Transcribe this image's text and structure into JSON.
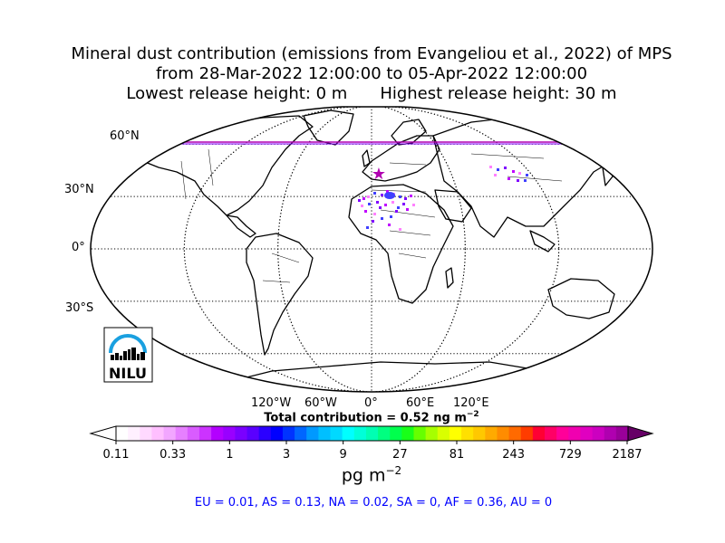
{
  "title": {
    "line1": "Mineral dust contribution (emissions from Evangeliou et al., 2022) of MPS",
    "line2": "from 28-Mar-2022 12:00:00 to 05-Apr-2022 12:00:00",
    "line3_left": "Lowest release height: 0 m",
    "line3_right": "Highest release height: 30 m"
  },
  "map": {
    "projection": "robinson",
    "lat_labels": [
      "60°N",
      "30°N",
      "0°",
      "30°S"
    ],
    "lon_labels": [
      "120°W",
      "60°W",
      "0°",
      "60°E",
      "120°E"
    ],
    "release_marker_color": "#b000b0",
    "plume_colors": [
      "#8000ff",
      "#c000ff",
      "#ff80ff",
      "#4040ff"
    ],
    "logo_text": "NILU",
    "logo_color": "#1aa0e0"
  },
  "total": {
    "prefix": "Total contribution = 0.52 ng m",
    "exp": "−2"
  },
  "colorbar": {
    "tick_labels": [
      "0.11",
      "0.33",
      "1",
      "3",
      "9",
      "27",
      "81",
      "243",
      "729",
      "2187"
    ],
    "colors": [
      "#ffffff",
      "#fff0ff",
      "#ffd9ff",
      "#ffbfff",
      "#f2a6ff",
      "#e680ff",
      "#d95cff",
      "#cc33ff",
      "#b300ff",
      "#9900ff",
      "#7a00ff",
      "#5a00ff",
      "#2b00ff",
      "#0000ff",
      "#0033ff",
      "#0066ff",
      "#0099ff",
      "#00bfff",
      "#00d9ff",
      "#00ffff",
      "#00ffd9",
      "#00ffb3",
      "#00ff80",
      "#00ff4d",
      "#19ff19",
      "#66ff00",
      "#a6ff00",
      "#d9ff00",
      "#ffff00",
      "#ffe000",
      "#ffc800",
      "#ffaa00",
      "#ff8c00",
      "#ff6a00",
      "#ff3c00",
      "#ff0033",
      "#ff0066",
      "#ff0099",
      "#f000b0",
      "#e000c0",
      "#cc00c0",
      "#b000b0",
      "#990099"
    ],
    "unit_base": "pg m",
    "unit_exp": "−2"
  },
  "regions": "EU = 0.01,  AS = 0.13,  NA = 0.02,  SA = 0,  AF = 0.36,  AU = 0"
}
